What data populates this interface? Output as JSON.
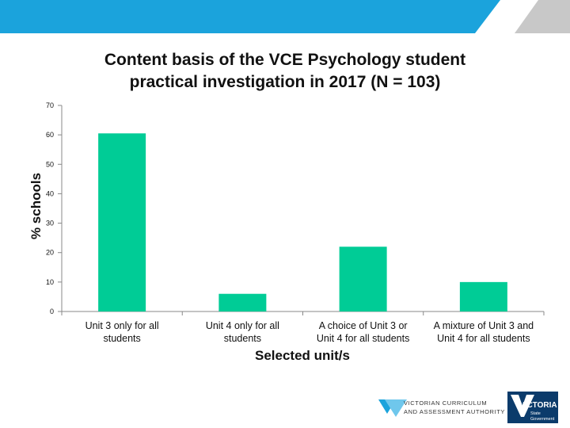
{
  "colors": {
    "banner": "#1ba3dc",
    "bar": "#00cc96",
    "axis": "#888888",
    "brand_blue": "#003a6b"
  },
  "chart_data": {
    "type": "bar",
    "title": "Content basis of the VCE Psychology student practical investigation in 2017 (N = 103)",
    "title_lines": [
      "Content basis of the VCE Psychology student",
      "practical investigation in 2017 (N = 103)"
    ],
    "xlabel": "Selected unit/s",
    "ylabel": "% schools",
    "categories": [
      "Unit 3 only for all students",
      "Unit 4 only for all students",
      "A choice of Unit 3 or Unit 4 for all students",
      "A mixture of Unit 3 and Unit 4 for all students"
    ],
    "category_lines": [
      [
        "Unit 3 only for all",
        "students"
      ],
      [
        "Unit 4 only for all",
        "students"
      ],
      [
        "A choice of Unit 3 or",
        "Unit 4 for all students"
      ],
      [
        "A mixture of Unit 3 and",
        "Unit 4 for all students"
      ]
    ],
    "values": [
      60.5,
      6,
      22,
      10
    ],
    "ylim": [
      0,
      70
    ],
    "yticks": [
      0,
      10,
      20,
      30,
      40,
      50,
      60,
      70
    ],
    "grid": false,
    "legend": "none"
  },
  "footer": {
    "vcaa_line1": "VICTORIAN CURRICULUM",
    "vcaa_line2": "AND ASSESSMENT AUTHORITY",
    "victoria_word": "VICTORIA",
    "victoria_sub1": "State",
    "victoria_sub2": "Government"
  }
}
